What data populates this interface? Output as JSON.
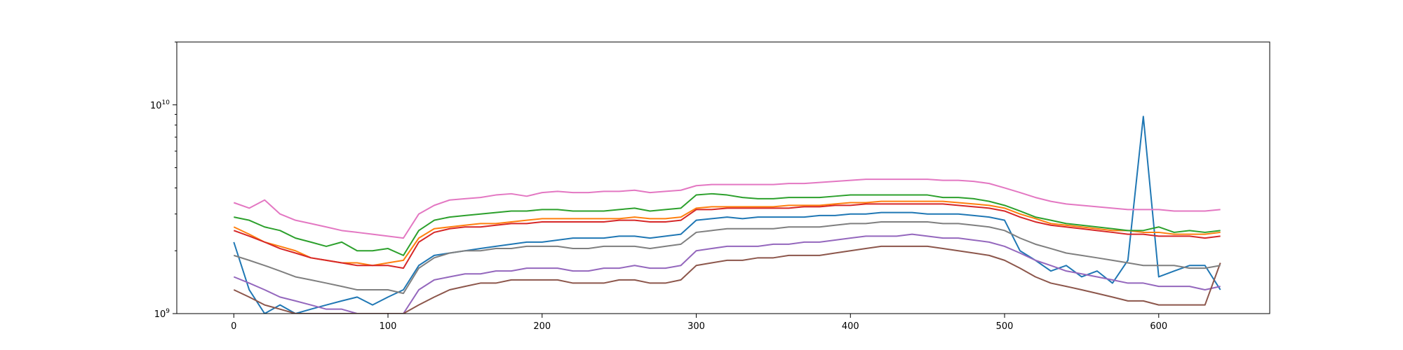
{
  "chart_data": {
    "type": "line",
    "title": "",
    "xlabel": "",
    "ylabel": "",
    "y_scale": "log",
    "grid": false,
    "legend": "none",
    "xlim": [
      -37,
      672
    ],
    "ylim": [
      1000000000,
      20000000000
    ],
    "x_ticks": [
      0,
      100,
      200,
      300,
      400,
      500,
      600
    ],
    "x_tick_labels": [
      "0",
      "100",
      "200",
      "300",
      "400",
      "500",
      "600"
    ],
    "y_ticks": [
      1000000000,
      10000000000
    ],
    "y_tick_labels": [
      {
        "base": "10",
        "exp": "9"
      },
      {
        "base": "10",
        "exp": "10"
      }
    ],
    "x": [
      0,
      10,
      20,
      30,
      40,
      50,
      60,
      70,
      80,
      90,
      100,
      110,
      120,
      130,
      140,
      150,
      160,
      170,
      180,
      190,
      200,
      210,
      220,
      230,
      240,
      250,
      260,
      270,
      280,
      290,
      300,
      310,
      320,
      330,
      340,
      350,
      360,
      370,
      380,
      390,
      400,
      410,
      420,
      430,
      440,
      450,
      460,
      470,
      480,
      490,
      500,
      510,
      520,
      530,
      540,
      550,
      560,
      570,
      580,
      590,
      600,
      610,
      620,
      630,
      640
    ],
    "series": [
      {
        "color": "#1f77b4",
        "values": [
          2200000000.0,
          1300000000.0,
          1000000000.0,
          1100000000.0,
          1000000000.0,
          1050000000.0,
          1100000000.0,
          1150000000.0,
          1200000000.0,
          1100000000.0,
          1200000000.0,
          1300000000.0,
          1700000000.0,
          1900000000.0,
          1950000000.0,
          2000000000.0,
          2050000000.0,
          2100000000.0,
          2150000000.0,
          2200000000.0,
          2200000000.0,
          2250000000.0,
          2300000000.0,
          2300000000.0,
          2300000000.0,
          2350000000.0,
          2350000000.0,
          2300000000.0,
          2350000000.0,
          2400000000.0,
          2800000000.0,
          2850000000.0,
          2900000000.0,
          2850000000.0,
          2900000000.0,
          2900000000.0,
          2900000000.0,
          2900000000.0,
          2950000000.0,
          2950000000.0,
          3000000000.0,
          3000000000.0,
          3050000000.0,
          3050000000.0,
          3050000000.0,
          3000000000.0,
          3000000000.0,
          3000000000.0,
          2950000000.0,
          2900000000.0,
          2800000000.0,
          2000000000.0,
          1800000000.0,
          1600000000.0,
          1700000000.0,
          1500000000.0,
          1600000000.0,
          1400000000.0,
          1800000000.0,
          8800000000.0,
          1500000000.0,
          1600000000.0,
          1700000000.0,
          1700000000.0,
          1300000000.0
        ]
      },
      {
        "color": "#ff7f0e",
        "values": [
          2600000000.0,
          2400000000.0,
          2200000000.0,
          2100000000.0,
          2000000000.0,
          1850000000.0,
          1800000000.0,
          1750000000.0,
          1750000000.0,
          1700000000.0,
          1750000000.0,
          1800000000.0,
          2300000000.0,
          2550000000.0,
          2600000000.0,
          2650000000.0,
          2700000000.0,
          2700000000.0,
          2750000000.0,
          2800000000.0,
          2850000000.0,
          2850000000.0,
          2850000000.0,
          2850000000.0,
          2850000000.0,
          2850000000.0,
          2900000000.0,
          2850000000.0,
          2850000000.0,
          2900000000.0,
          3200000000.0,
          3250000000.0,
          3250000000.0,
          3250000000.0,
          3250000000.0,
          3250000000.0,
          3300000000.0,
          3300000000.0,
          3300000000.0,
          3350000000.0,
          3400000000.0,
          3400000000.0,
          3450000000.0,
          3450000000.0,
          3450000000.0,
          3450000000.0,
          3450000000.0,
          3400000000.0,
          3350000000.0,
          3300000000.0,
          3200000000.0,
          3000000000.0,
          2850000000.0,
          2700000000.0,
          2650000000.0,
          2600000000.0,
          2550000000.0,
          2500000000.0,
          2500000000.0,
          2450000000.0,
          2450000000.0,
          2400000000.0,
          2400000000.0,
          2400000000.0,
          2450000000.0
        ]
      },
      {
        "color": "#2ca02c",
        "values": [
          2900000000.0,
          2800000000.0,
          2600000000.0,
          2500000000.0,
          2300000000.0,
          2200000000.0,
          2100000000.0,
          2200000000.0,
          2000000000.0,
          2000000000.0,
          2050000000.0,
          1900000000.0,
          2500000000.0,
          2800000000.0,
          2900000000.0,
          2950000000.0,
          3000000000.0,
          3050000000.0,
          3100000000.0,
          3100000000.0,
          3150000000.0,
          3150000000.0,
          3100000000.0,
          3100000000.0,
          3100000000.0,
          3150000000.0,
          3200000000.0,
          3100000000.0,
          3150000000.0,
          3200000000.0,
          3700000000.0,
          3750000000.0,
          3700000000.0,
          3600000000.0,
          3550000000.0,
          3550000000.0,
          3600000000.0,
          3600000000.0,
          3600000000.0,
          3650000000.0,
          3700000000.0,
          3700000000.0,
          3700000000.0,
          3700000000.0,
          3700000000.0,
          3700000000.0,
          3600000000.0,
          3600000000.0,
          3550000000.0,
          3450000000.0,
          3300000000.0,
          3100000000.0,
          2900000000.0,
          2800000000.0,
          2700000000.0,
          2650000000.0,
          2600000000.0,
          2550000000.0,
          2500000000.0,
          2500000000.0,
          2600000000.0,
          2450000000.0,
          2500000000.0,
          2450000000.0,
          2500000000.0
        ]
      },
      {
        "color": "#d62728",
        "values": [
          2500000000.0,
          2350000000.0,
          2200000000.0,
          2050000000.0,
          1950000000.0,
          1850000000.0,
          1800000000.0,
          1750000000.0,
          1700000000.0,
          1700000000.0,
          1700000000.0,
          1650000000.0,
          2200000000.0,
          2450000000.0,
          2550000000.0,
          2600000000.0,
          2600000000.0,
          2650000000.0,
          2700000000.0,
          2700000000.0,
          2750000000.0,
          2750000000.0,
          2750000000.0,
          2750000000.0,
          2750000000.0,
          2800000000.0,
          2800000000.0,
          2750000000.0,
          2750000000.0,
          2800000000.0,
          3150000000.0,
          3150000000.0,
          3200000000.0,
          3200000000.0,
          3200000000.0,
          3200000000.0,
          3200000000.0,
          3250000000.0,
          3250000000.0,
          3300000000.0,
          3300000000.0,
          3350000000.0,
          3350000000.0,
          3350000000.0,
          3350000000.0,
          3350000000.0,
          3350000000.0,
          3300000000.0,
          3250000000.0,
          3200000000.0,
          3100000000.0,
          2900000000.0,
          2750000000.0,
          2650000000.0,
          2600000000.0,
          2550000000.0,
          2500000000.0,
          2450000000.0,
          2400000000.0,
          2400000000.0,
          2350000000.0,
          2350000000.0,
          2350000000.0,
          2300000000.0,
          2350000000.0
        ]
      },
      {
        "color": "#9467bd",
        "values": [
          1500000000.0,
          1400000000.0,
          1300000000.0,
          1200000000.0,
          1150000000.0,
          1100000000.0,
          1050000000.0,
          1050000000.0,
          1000000000.0,
          1000000000.0,
          1000000000.0,
          1000000000.0,
          1300000000.0,
          1450000000.0,
          1500000000.0,
          1550000000.0,
          1550000000.0,
          1600000000.0,
          1600000000.0,
          1650000000.0,
          1650000000.0,
          1650000000.0,
          1600000000.0,
          1600000000.0,
          1650000000.0,
          1650000000.0,
          1700000000.0,
          1650000000.0,
          1650000000.0,
          1700000000.0,
          2000000000.0,
          2050000000.0,
          2100000000.0,
          2100000000.0,
          2100000000.0,
          2150000000.0,
          2150000000.0,
          2200000000.0,
          2200000000.0,
          2250000000.0,
          2300000000.0,
          2350000000.0,
          2350000000.0,
          2350000000.0,
          2400000000.0,
          2350000000.0,
          2300000000.0,
          2300000000.0,
          2250000000.0,
          2200000000.0,
          2100000000.0,
          1950000000.0,
          1800000000.0,
          1700000000.0,
          1600000000.0,
          1550000000.0,
          1500000000.0,
          1450000000.0,
          1400000000.0,
          1400000000.0,
          1350000000.0,
          1350000000.0,
          1350000000.0,
          1300000000.0,
          1350000000.0
        ]
      },
      {
        "color": "#8c564b",
        "values": [
          1300000000.0,
          1200000000.0,
          1100000000.0,
          1050000000.0,
          1000000000.0,
          1000000000.0,
          1000000000.0,
          1000000000.0,
          1000000000.0,
          1000000000.0,
          1000000000.0,
          1000000000.0,
          1100000000.0,
          1200000000.0,
          1300000000.0,
          1350000000.0,
          1400000000.0,
          1400000000.0,
          1450000000.0,
          1450000000.0,
          1450000000.0,
          1450000000.0,
          1400000000.0,
          1400000000.0,
          1400000000.0,
          1450000000.0,
          1450000000.0,
          1400000000.0,
          1400000000.0,
          1450000000.0,
          1700000000.0,
          1750000000.0,
          1800000000.0,
          1800000000.0,
          1850000000.0,
          1850000000.0,
          1900000000.0,
          1900000000.0,
          1900000000.0,
          1950000000.0,
          2000000000.0,
          2050000000.0,
          2100000000.0,
          2100000000.0,
          2100000000.0,
          2100000000.0,
          2050000000.0,
          2000000000.0,
          1950000000.0,
          1900000000.0,
          1800000000.0,
          1650000000.0,
          1500000000.0,
          1400000000.0,
          1350000000.0,
          1300000000.0,
          1250000000.0,
          1200000000.0,
          1150000000.0,
          1150000000.0,
          1100000000.0,
          1100000000.0,
          1100000000.0,
          1100000000.0,
          1750000000.0
        ]
      },
      {
        "color": "#e377c2",
        "values": [
          3400000000.0,
          3200000000.0,
          3500000000.0,
          3000000000.0,
          2800000000.0,
          2700000000.0,
          2600000000.0,
          2500000000.0,
          2450000000.0,
          2400000000.0,
          2350000000.0,
          2300000000.0,
          3000000000.0,
          3300000000.0,
          3500000000.0,
          3550000000.0,
          3600000000.0,
          3700000000.0,
          3750000000.0,
          3650000000.0,
          3800000000.0,
          3850000000.0,
          3800000000.0,
          3800000000.0,
          3850000000.0,
          3850000000.0,
          3900000000.0,
          3800000000.0,
          3850000000.0,
          3900000000.0,
          4100000000.0,
          4150000000.0,
          4150000000.0,
          4150000000.0,
          4150000000.0,
          4150000000.0,
          4200000000.0,
          4200000000.0,
          4250000000.0,
          4300000000.0,
          4350000000.0,
          4400000000.0,
          4400000000.0,
          4400000000.0,
          4400000000.0,
          4400000000.0,
          4350000000.0,
          4350000000.0,
          4300000000.0,
          4200000000.0,
          4000000000.0,
          3800000000.0,
          3600000000.0,
          3450000000.0,
          3350000000.0,
          3300000000.0,
          3250000000.0,
          3200000000.0,
          3150000000.0,
          3150000000.0,
          3150000000.0,
          3100000000.0,
          3100000000.0,
          3100000000.0,
          3150000000.0
        ]
      },
      {
        "color": "#7f7f7f",
        "values": [
          1900000000.0,
          1800000000.0,
          1700000000.0,
          1600000000.0,
          1500000000.0,
          1450000000.0,
          1400000000.0,
          1350000000.0,
          1300000000.0,
          1300000000.0,
          1300000000.0,
          1250000000.0,
          1650000000.0,
          1850000000.0,
          1950000000.0,
          2000000000.0,
          2000000000.0,
          2050000000.0,
          2050000000.0,
          2100000000.0,
          2100000000.0,
          2100000000.0,
          2050000000.0,
          2050000000.0,
          2100000000.0,
          2100000000.0,
          2100000000.0,
          2050000000.0,
          2100000000.0,
          2150000000.0,
          2450000000.0,
          2500000000.0,
          2550000000.0,
          2550000000.0,
          2550000000.0,
          2550000000.0,
          2600000000.0,
          2600000000.0,
          2600000000.0,
          2650000000.0,
          2700000000.0,
          2700000000.0,
          2750000000.0,
          2750000000.0,
          2750000000.0,
          2750000000.0,
          2700000000.0,
          2700000000.0,
          2650000000.0,
          2600000000.0,
          2500000000.0,
          2300000000.0,
          2150000000.0,
          2050000000.0,
          1950000000.0,
          1900000000.0,
          1850000000.0,
          1800000000.0,
          1750000000.0,
          1700000000.0,
          1700000000.0,
          1700000000.0,
          1650000000.0,
          1650000000.0,
          1700000000.0
        ]
      }
    ]
  }
}
